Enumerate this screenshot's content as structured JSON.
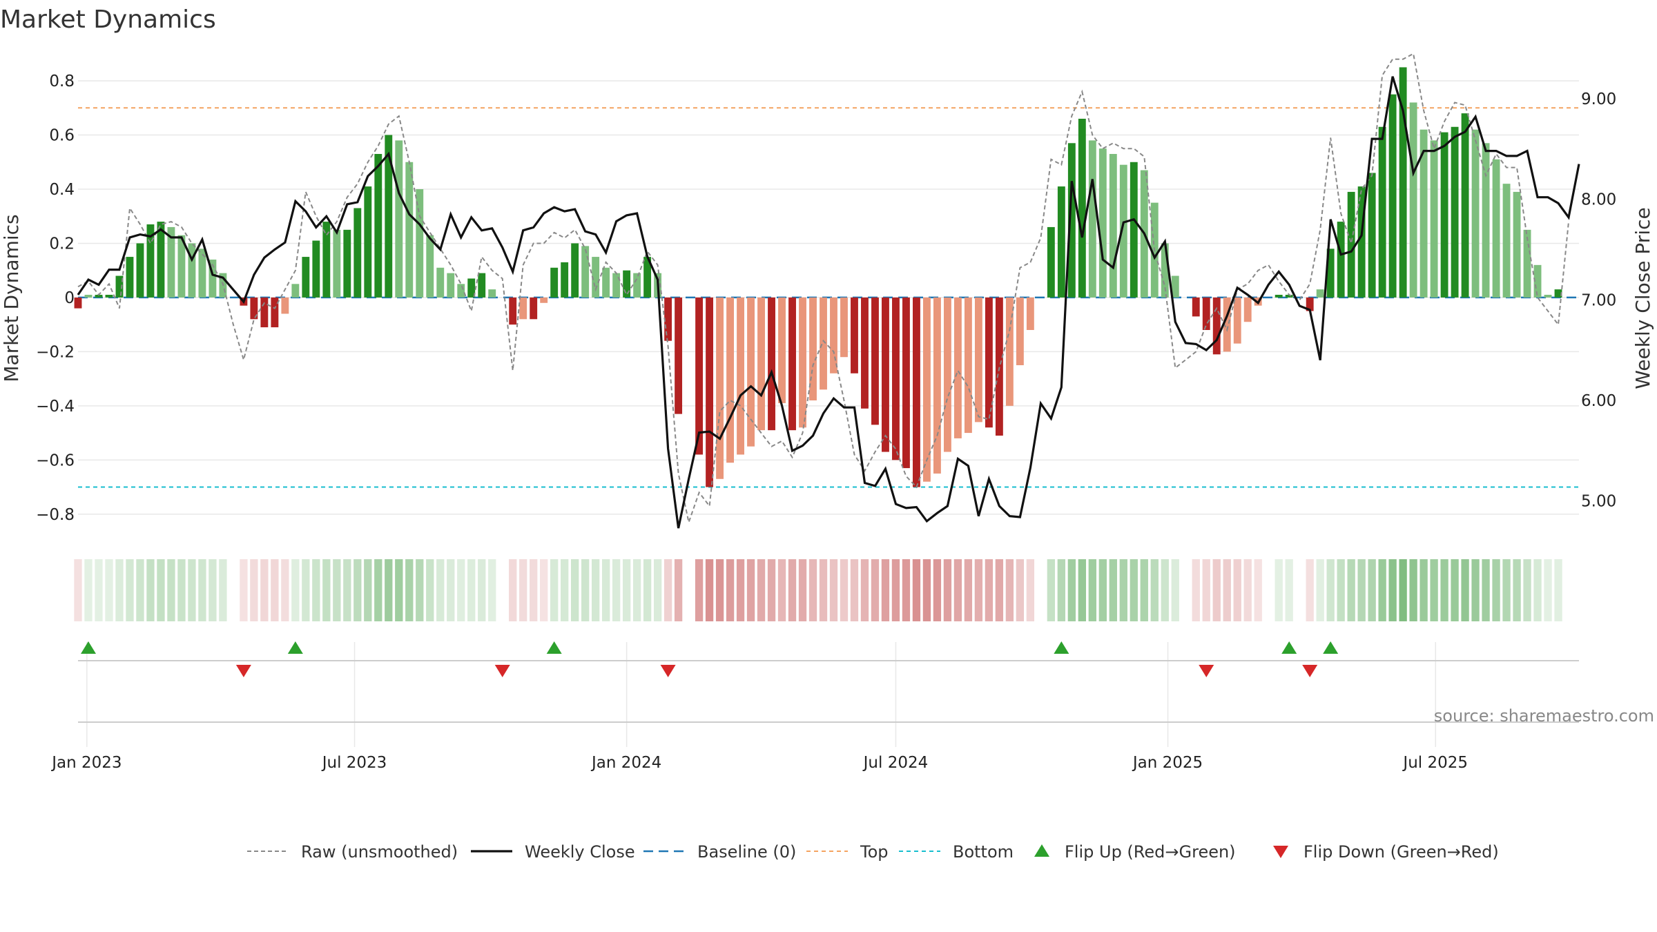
{
  "chart_data": {
    "type": "bar",
    "title": "Market Dynamics",
    "ylabel_left": "Market Dynamics",
    "ylabel_right": "Weekly Close Price",
    "source": "source: sharemaestro.com",
    "ylim_left": [
      -0.9,
      0.92
    ],
    "ylim_right": [
      4.6,
      9.5
    ],
    "yticks_left": [
      "0.8",
      "0.6",
      "0.4",
      "0.2",
      "0",
      "−0.2",
      "−0.4",
      "−0.6",
      "−0.8"
    ],
    "yticks_left_values": [
      0.8,
      0.6,
      0.4,
      0.2,
      0,
      -0.2,
      -0.4,
      -0.6,
      -0.8
    ],
    "yticks_right": [
      "9.00",
      "8.00",
      "7.00",
      "6.00",
      "5.00"
    ],
    "yticks_right_values": [
      9,
      8,
      7,
      6,
      5
    ],
    "x_start": "2022-12-26",
    "x_end": "2025-10-06",
    "xticks": [
      {
        "label": "Jan 2023",
        "date": "2023-01-01"
      },
      {
        "label": "Jul 2023",
        "date": "2023-07-01"
      },
      {
        "label": "Jan 2024",
        "date": "2024-01-01"
      },
      {
        "label": "Jul 2024",
        "date": "2024-07-01"
      },
      {
        "label": "Jan 2025",
        "date": "2025-01-01"
      },
      {
        "label": "Jul 2025",
        "date": "2025-07-01"
      }
    ],
    "top_level": 0.7,
    "bottom_level": -0.7,
    "baseline": 0,
    "values": [
      -0.04,
      0.01,
      0.01,
      0.01,
      0.08,
      0.15,
      0.2,
      0.27,
      0.28,
      0.26,
      0.23,
      0.2,
      0.18,
      0.14,
      0.09,
      0,
      -0.03,
      -0.08,
      -0.11,
      -0.11,
      -0.06,
      0.05,
      0.15,
      0.21,
      0.28,
      0.25,
      0.25,
      0.33,
      0.41,
      0.53,
      0.6,
      0.58,
      0.5,
      0.4,
      0.23,
      0.11,
      0.09,
      0.05,
      0.07,
      0.09,
      0.03,
      0,
      -0.1,
      -0.08,
      -0.08,
      -0.02,
      0.11,
      0.13,
      0.2,
      0.19,
      0.15,
      0.11,
      0.09,
      0.1,
      0.09,
      0.15,
      0.09,
      -0.16,
      -0.43,
      0,
      -0.58,
      -0.7,
      -0.67,
      -0.61,
      -0.58,
      -0.55,
      -0.49,
      -0.49,
      -0.39,
      -0.49,
      -0.48,
      -0.38,
      -0.34,
      -0.28,
      -0.22,
      -0.28,
      -0.41,
      -0.47,
      -0.57,
      -0.6,
      -0.63,
      -0.7,
      -0.68,
      -0.65,
      -0.57,
      -0.52,
      -0.5,
      -0.46,
      -0.48,
      -0.51,
      -0.4,
      -0.25,
      -0.12,
      0,
      0.26,
      0.41,
      0.57,
      0.66,
      0.58,
      0.55,
      0.53,
      0.49,
      0.5,
      0.47,
      0.35,
      0.2,
      0.08,
      0,
      -0.07,
      -0.12,
      -0.21,
      -0.2,
      -0.17,
      -0.09,
      -0.03,
      0,
      0.01,
      0.01,
      0,
      -0.05,
      0.03,
      0.18,
      0.28,
      0.39,
      0.41,
      0.46,
      0.63,
      0.75,
      0.85,
      0.72,
      0.62,
      0.58,
      0.61,
      0.63,
      0.68,
      0.62,
      0.57,
      0.51,
      0.42,
      0.39,
      0.25,
      0.12,
      0.01,
      0.03
    ],
    "series": [
      {
        "name": "Raw (unsmoothed)",
        "values": [
          0.04,
          0.06,
          0.01,
          0.05,
          -0.04,
          0.33,
          0.27,
          0.2,
          0.27,
          0.28,
          0.26,
          0.2,
          0.16,
          0.12,
          0.05,
          -0.1,
          -0.23,
          -0.08,
          -0.02,
          -0.04,
          0.03,
          0.1,
          0.39,
          0.3,
          0.23,
          0.28,
          0.37,
          0.42,
          0.5,
          0.56,
          0.64,
          0.67,
          0.5,
          0.3,
          0.24,
          0.18,
          0.12,
          0.05,
          -0.05,
          0.15,
          0.1,
          0.07,
          -0.27,
          0.12,
          0.2,
          0.2,
          0.24,
          0.22,
          0.25,
          0.18,
          0.03,
          0.13,
          0.09,
          0.01,
          0.07,
          0.17,
          0.12,
          -0.18,
          -0.65,
          -0.83,
          -0.72,
          -0.77,
          -0.42,
          -0.38,
          -0.4,
          -0.45,
          -0.5,
          -0.55,
          -0.53,
          -0.59,
          -0.5,
          -0.25,
          -0.16,
          -0.2,
          -0.38,
          -0.58,
          -0.64,
          -0.57,
          -0.51,
          -0.56,
          -0.66,
          -0.7,
          -0.6,
          -0.51,
          -0.37,
          -0.27,
          -0.33,
          -0.44,
          -0.45,
          -0.26,
          -0.12,
          0.11,
          0.13,
          0.22,
          0.51,
          0.49,
          0.67,
          0.76,
          0.6,
          0.55,
          0.57,
          0.55,
          0.55,
          0.52,
          0.17,
          0.04,
          -0.26,
          -0.23,
          -0.2,
          -0.1,
          -0.04,
          -0.12,
          0.03,
          0.05,
          0.1,
          0.12,
          0.06,
          0.01,
          -0.01,
          0.05,
          0.25,
          0.59,
          0.31,
          0.2,
          0.4,
          0.45,
          0.82,
          0.88,
          0.88,
          0.9,
          0.69,
          0.55,
          0.65,
          0.72,
          0.71,
          0.58,
          0.45,
          0.53,
          0.48,
          0.48,
          0.22,
          0,
          -0.05,
          -0.1,
          0.28
        ]
      },
      {
        "name": "Weekly Close",
        "values": [
          7.05,
          7.2,
          7.15,
          7.3,
          7.3,
          7.62,
          7.65,
          7.63,
          7.7,
          7.62,
          7.62,
          7.4,
          7.6,
          7.25,
          7.22,
          7.1,
          6.98,
          7.25,
          7.42,
          7.5,
          7.57,
          7.98,
          7.88,
          7.72,
          7.83,
          7.67,
          7.95,
          7.97,
          8.23,
          8.33,
          8.45,
          8.06,
          7.85,
          7.75,
          7.61,
          7.5,
          7.85,
          7.62,
          7.82,
          7.69,
          7.71,
          7.52,
          7.28,
          7.69,
          7.72,
          7.86,
          7.92,
          7.88,
          7.9,
          7.68,
          7.65,
          7.47,
          7.78,
          7.84,
          7.86,
          7.43,
          7.2,
          5.52,
          4.73,
          5.22,
          5.68,
          5.69,
          5.62,
          5.83,
          6.05,
          6.14,
          6.05,
          6.28,
          5.95,
          5.5,
          5.55,
          5.65,
          5.87,
          6.02,
          5.93,
          5.93,
          5.18,
          5.15,
          5.32,
          4.97,
          4.93,
          4.94,
          4.8,
          4.88,
          4.95,
          5.42,
          5.35,
          4.85,
          5.22,
          4.95,
          4.85,
          4.84,
          5.33,
          5.97,
          5.82,
          6.13,
          8.18,
          7.62,
          8.2,
          7.4,
          7.32,
          7.77,
          7.8,
          7.66,
          7.42,
          7.58,
          6.78,
          6.57,
          6.56,
          6.5,
          6.6,
          6.84,
          7.12,
          7.05,
          6.97,
          7.15,
          7.28,
          7.15,
          6.94,
          6.9,
          6.4,
          7.8,
          7.45,
          7.48,
          7.64,
          8.6,
          8.6,
          9.22,
          8.88,
          8.26,
          8.48,
          8.48,
          8.53,
          8.62,
          8.67,
          8.82,
          8.48,
          8.48,
          8.43,
          8.43,
          8.48,
          8.02,
          8.02,
          7.96,
          7.82,
          8.35
        ]
      }
    ],
    "legend": [
      {
        "key": "raw",
        "label": "Raw (unsmoothed)"
      },
      {
        "key": "close",
        "label": "Weekly Close"
      },
      {
        "key": "baseline",
        "label": "Baseline (0)"
      },
      {
        "key": "top",
        "label": "Top"
      },
      {
        "key": "bottom",
        "label": "Bottom"
      },
      {
        "key": "flipup",
        "label": "Flip Up (Red→Green)"
      },
      {
        "key": "flipdown",
        "label": "Flip Down (Green→Red)"
      }
    ],
    "flip_up_weeks": [
      1,
      21,
      46,
      95,
      117,
      121
    ],
    "flip_down_weeks": [
      16,
      41,
      57,
      109,
      119
    ],
    "legend_position": "bottom",
    "grid": true
  },
  "colors": {
    "green_strong": "#228B22",
    "green_light": "#7DBE7D",
    "red_strong": "#B22222",
    "red_light": "#E9967A",
    "raw_line": "#888888",
    "close_line": "#111111",
    "baseline": "#1F77B4",
    "top": "#F4A460",
    "bottom": "#17BECF",
    "flip_up": "#2CA02C",
    "flip_down": "#D62728",
    "grid": "#E8E8E8"
  }
}
